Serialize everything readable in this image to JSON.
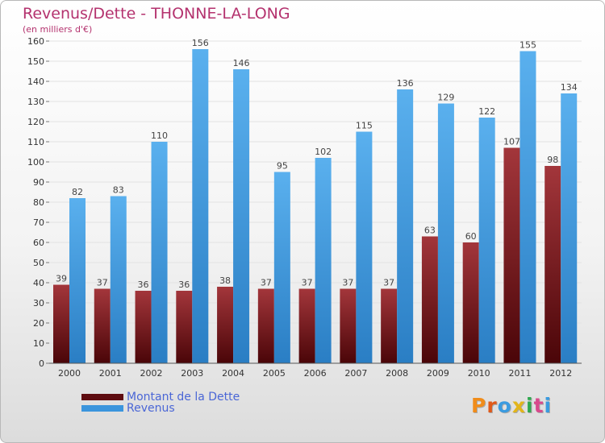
{
  "chart_data": {
    "type": "bar",
    "title": "Revenus/Dette - THONNE-LA-LONG",
    "subtitle": "(en milliers d'€)",
    "categories": [
      "2000",
      "2001",
      "2002",
      "2003",
      "2004",
      "2005",
      "2006",
      "2007",
      "2008",
      "2009",
      "2010",
      "2011",
      "2012"
    ],
    "series": [
      {
        "name": "Montant de la Dette",
        "color": "#7a1a1f",
        "values": [
          39,
          37,
          36,
          36,
          38,
          37,
          37,
          37,
          37,
          63,
          60,
          107,
          98
        ]
      },
      {
        "name": "Revenus",
        "color": "#3b95dd",
        "values": [
          82,
          83,
          110,
          156,
          146,
          95,
          102,
          115,
          136,
          129,
          122,
          155,
          134
        ]
      }
    ],
    "ylim": [
      0,
      160
    ],
    "ytick_step": 10,
    "grid": true,
    "legend_position": "bottom-left"
  },
  "logo": {
    "letters": [
      "P",
      "r",
      "o",
      "x",
      "i",
      "t",
      "i"
    ],
    "colors": [
      "#f08c1a",
      "#e05a1a",
      "#3a9be0",
      "#e2b51b",
      "#2fa84f",
      "#d84a8c",
      "#3a9be0"
    ]
  }
}
